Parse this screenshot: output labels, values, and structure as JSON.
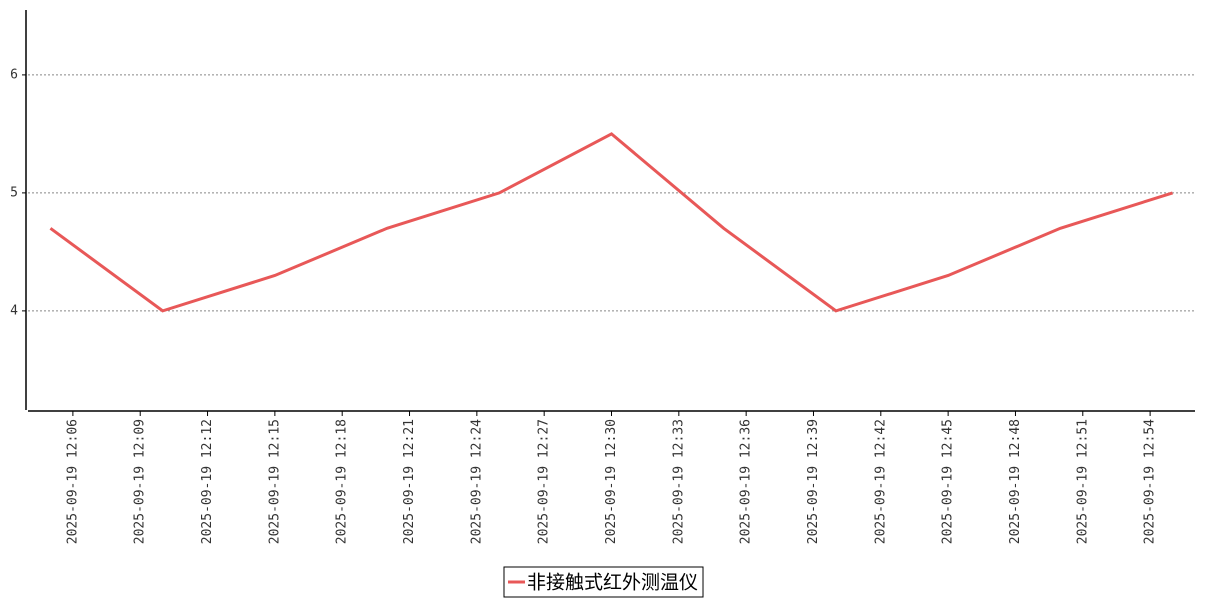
{
  "chart_data": {
    "type": "line",
    "x": [
      "2025-09-19 12:05",
      "2025-09-19 12:10",
      "2025-09-19 12:15",
      "2025-09-19 12:20",
      "2025-09-19 12:25",
      "2025-09-19 12:30",
      "2025-09-19 12:35",
      "2025-09-19 12:40",
      "2025-09-19 12:45",
      "2025-09-19 12:50",
      "2025-09-19 12:55"
    ],
    "series": [
      {
        "name": "非接触式红外测温仪",
        "color": "#e85858",
        "values": [
          4.7,
          4.0,
          4.3,
          4.7,
          5.0,
          5.5,
          4.7,
          4.0,
          4.3,
          4.7,
          5.0
        ]
      }
    ],
    "xlim": [
      "2025-09-19 12:04",
      "2025-09-19 12:56"
    ],
    "xticks": [
      "2025-09-19 12:06",
      "2025-09-19 12:09",
      "2025-09-19 12:12",
      "2025-09-19 12:15",
      "2025-09-19 12:18",
      "2025-09-19 12:21",
      "2025-09-19 12:24",
      "2025-09-19 12:27",
      "2025-09-19 12:30",
      "2025-09-19 12:33",
      "2025-09-19 12:36",
      "2025-09-19 12:39",
      "2025-09-19 12:42",
      "2025-09-19 12:45",
      "2025-09-19 12:48",
      "2025-09-19 12:51",
      "2025-09-19 12:54"
    ],
    "ylim": [
      3.16,
      6.55
    ],
    "yticks": [
      4,
      5,
      6
    ],
    "grid": true,
    "legend": "bottom"
  }
}
